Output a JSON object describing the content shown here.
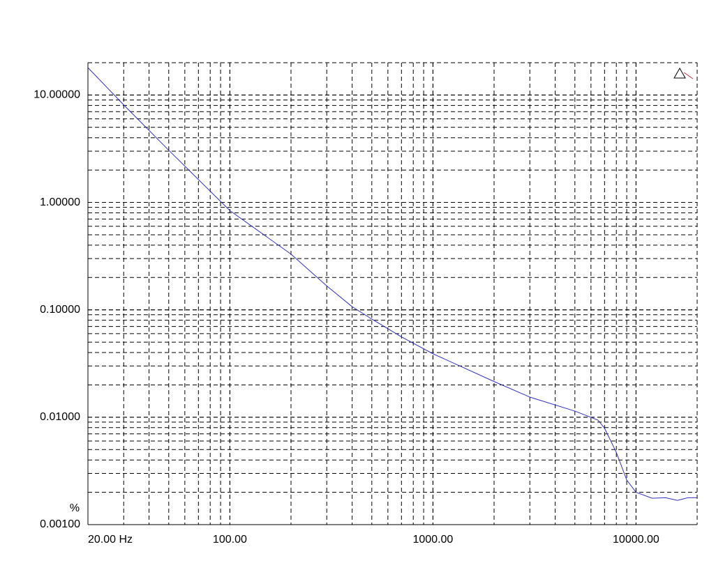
{
  "chart_data": {
    "type": "line",
    "y_label": "%",
    "x": [
      20,
      30,
      50,
      100,
      200,
      300,
      400,
      500,
      700,
      1000,
      2000,
      3000,
      5000,
      6500,
      7000,
      8000,
      9000,
      10000,
      12000,
      14000,
      16000,
      18000,
      20000
    ],
    "values": [
      18,
      8.1,
      3.06,
      0.84,
      0.33,
      0.167,
      0.107,
      0.082,
      0.056,
      0.039,
      0.0215,
      0.0154,
      0.0114,
      0.0094,
      0.0079,
      0.0047,
      0.0026,
      0.002,
      0.00176,
      0.00178,
      0.00168,
      0.00178,
      0.00178
    ],
    "color": "#3030c0",
    "xlog": true,
    "ylog": true,
    "grid": true,
    "xlim": [
      20,
      20000
    ],
    "ylim": [
      0.001,
      20
    ],
    "xticks": [
      {
        "value": 20,
        "label": "20.00 Hz"
      },
      {
        "value": 100,
        "label": "100.00"
      },
      {
        "value": 1000,
        "label": "1000.00"
      },
      {
        "value": 10000,
        "label": "10000.00"
      }
    ],
    "yticks": [
      {
        "value": 10,
        "label": "10.00000"
      },
      {
        "value": 1,
        "label": "1.00000"
      },
      {
        "value": 0.1,
        "label": "0.10000"
      },
      {
        "value": 0.01,
        "label": "0.01000"
      },
      {
        "value": 0.001,
        "label": "0.00100"
      }
    ]
  }
}
